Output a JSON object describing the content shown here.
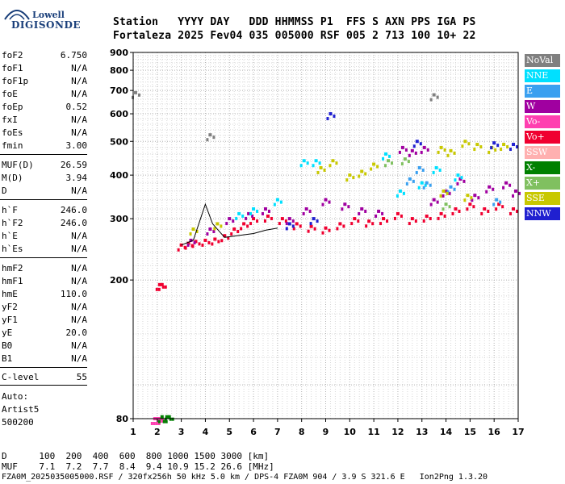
{
  "logo": {
    "line1": "Lowell",
    "line2": "DIGISONDE"
  },
  "header": {
    "row1": "Station   YYYY DAY   DDD HHMMSS P1  FFS S AXN PPS IGA PS",
    "row2": "Fortaleza 2025 Fev04 035 005000 RSF 005 2 713 100 10+ 22"
  },
  "params": [
    {
      "name": "foF2",
      "value": "6.750"
    },
    {
      "name": "foF1",
      "value": "N/A"
    },
    {
      "name": "foF1p",
      "value": "N/A"
    },
    {
      "name": "foE",
      "value": "N/A"
    },
    {
      "name": "foEp",
      "value": "0.52"
    },
    {
      "name": "fxI",
      "value": "N/A"
    },
    {
      "name": "foEs",
      "value": "N/A"
    },
    {
      "name": "fmin",
      "value": "3.00"
    },
    {
      "name": "MUF(D)",
      "value": "26.59"
    },
    {
      "name": "M(D)",
      "value": "3.94"
    },
    {
      "name": "D",
      "value": "N/A"
    },
    {
      "name": "h`F",
      "value": "246.0"
    },
    {
      "name": "h`F2",
      "value": "246.0"
    },
    {
      "name": "h`E",
      "value": "N/A"
    },
    {
      "name": "h`Es",
      "value": "N/A"
    },
    {
      "name": "hmF2",
      "value": "N/A"
    },
    {
      "name": "hmF1",
      "value": "N/A"
    },
    {
      "name": "hmE",
      "value": "110.0"
    },
    {
      "name": "yF2",
      "value": "N/A"
    },
    {
      "name": "yF1",
      "value": "N/A"
    },
    {
      "name": "yE",
      "value": "20.0"
    },
    {
      "name": "B0",
      "value": "N/A"
    },
    {
      "name": "B1",
      "value": "N/A"
    },
    {
      "name": "C-level",
      "value": "55"
    }
  ],
  "auto": {
    "line1": "Auto:",
    "line2": "Artist5",
    "line3": "500200"
  },
  "footer": {
    "d_row": "D      100  200  400  600  800 1000 1500 3000 [km]",
    "muf_row": "MUF    7.1  7.2  7.7  8.4  9.4 10.9 15.2 26.6 [MHz]",
    "file_row": "FZA0M_2025035005000.RSF / 320fx256h 50 kHz 5.0 km / DPS-4 FZA0M 904 / 3.9 S 321.6 E   Ion2Png 1.3.20"
  },
  "legend": [
    {
      "label": "NoVal",
      "color": "#808080"
    },
    {
      "label": "NNE",
      "color": "#00e0ff"
    },
    {
      "label": "E",
      "color": "#3aa0f0"
    },
    {
      "label": "W",
      "color": "#a000a0"
    },
    {
      "label": "Vo-",
      "color": "#ff3fb0"
    },
    {
      "label": "Vo+",
      "color": "#f00030"
    },
    {
      "label": "SSW",
      "color": "#ffb0b0"
    },
    {
      "label": "X-",
      "color": "#008000"
    },
    {
      "label": "X+",
      "color": "#80c060"
    },
    {
      "label": "SSE",
      "color": "#c8c800"
    },
    {
      "label": "NNW",
      "color": "#2020d0"
    }
  ],
  "chart_data": {
    "type": "scatter",
    "title": "",
    "xlabel": "",
    "ylabel": "",
    "xlim": [
      1,
      17
    ],
    "ylim": [
      80,
      900
    ],
    "y_scale": "log",
    "x_ticks": [
      1,
      2,
      3,
      4,
      5,
      6,
      7,
      8,
      9,
      10,
      11,
      12,
      13,
      14,
      15,
      16,
      17
    ],
    "y_ticks": [
      80,
      200,
      300,
      400,
      500,
      600,
      700,
      800,
      900
    ],
    "grid": true,
    "legend_position": "right",
    "series": [
      {
        "name": "Vo-",
        "points": [
          [
            1.9,
            80
          ],
          [
            2.0,
            80
          ],
          [
            2.1,
            80
          ],
          [
            2.2,
            80
          ]
        ]
      },
      {
        "name": "X-",
        "points": [
          [
            2.2,
            81
          ],
          [
            2.4,
            81
          ],
          [
            2.5,
            81
          ]
        ]
      },
      {
        "name": "Vo+",
        "points": [
          [
            2.1,
            194
          ],
          [
            2.2,
            194
          ],
          [
            3.0,
            252
          ],
          [
            3.3,
            255
          ],
          [
            3.6,
            258
          ],
          [
            4.0,
            260
          ],
          [
            4.4,
            262
          ],
          [
            4.8,
            268
          ],
          [
            5.2,
            280
          ],
          [
            5.6,
            290
          ],
          [
            6.0,
            300
          ],
          [
            6.6,
            305
          ],
          [
            7.2,
            300
          ],
          [
            7.8,
            290
          ],
          [
            8.4,
            285
          ],
          [
            9.0,
            282
          ],
          [
            9.6,
            290
          ],
          [
            10.2,
            300
          ],
          [
            10.8,
            295
          ],
          [
            11.4,
            300
          ],
          [
            12.0,
            310
          ],
          [
            12.6,
            300
          ],
          [
            13.2,
            305
          ],
          [
            13.8,
            310
          ],
          [
            14.4,
            320
          ],
          [
            15.0,
            330
          ],
          [
            15.6,
            320
          ],
          [
            16.2,
            330
          ],
          [
            16.8,
            320
          ]
        ]
      },
      {
        "name": "W",
        "points": [
          [
            3.4,
            260
          ],
          [
            4.2,
            280
          ],
          [
            5.0,
            300
          ],
          [
            5.8,
            310
          ],
          [
            6.5,
            320
          ],
          [
            7.5,
            300
          ],
          [
            8.2,
            320
          ],
          [
            9.0,
            340
          ],
          [
            9.8,
            330
          ],
          [
            10.5,
            320
          ],
          [
            11.2,
            315
          ],
          [
            12.2,
            480
          ],
          [
            12.6,
            470
          ],
          [
            13.1,
            480
          ],
          [
            13.5,
            340
          ],
          [
            14.0,
            360
          ],
          [
            14.6,
            390
          ],
          [
            15.2,
            350
          ],
          [
            15.8,
            370
          ],
          [
            16.5,
            380
          ],
          [
            16.9,
            360
          ]
        ]
      },
      {
        "name": "NNE",
        "points": [
          [
            5.4,
            310
          ],
          [
            6.0,
            320
          ],
          [
            7.0,
            340
          ],
          [
            8.1,
            440
          ],
          [
            8.6,
            440
          ],
          [
            11.5,
            460
          ],
          [
            12.1,
            360
          ],
          [
            13.0,
            380
          ],
          [
            13.6,
            420
          ],
          [
            14.5,
            400
          ]
        ]
      },
      {
        "name": "E",
        "points": [
          [
            12.5,
            390
          ],
          [
            12.9,
            420
          ],
          [
            13.2,
            380
          ],
          [
            14.2,
            370
          ],
          [
            16.1,
            340
          ]
        ]
      },
      {
        "name": "SSE",
        "points": [
          [
            3.5,
            280
          ],
          [
            4.5,
            290
          ],
          [
            8.8,
            420
          ],
          [
            9.3,
            440
          ],
          [
            10.0,
            400
          ],
          [
            10.5,
            410
          ],
          [
            11.0,
            430
          ],
          [
            13.8,
            480
          ],
          [
            14.2,
            470
          ],
          [
            14.8,
            500
          ],
          [
            15.3,
            490
          ],
          [
            15.9,
            480
          ],
          [
            16.4,
            490
          ],
          [
            13.9,
            360
          ],
          [
            14.9,
            350
          ]
        ]
      },
      {
        "name": "X+",
        "points": [
          [
            11.6,
            440
          ],
          [
            12.3,
            445
          ],
          [
            14.0,
            330
          ]
        ]
      },
      {
        "name": "NNW",
        "points": [
          [
            7.5,
            290
          ],
          [
            8.5,
            300
          ],
          [
            9.2,
            600
          ],
          [
            12.8,
            500
          ],
          [
            16.0,
            495
          ],
          [
            16.8,
            490
          ]
        ]
      },
      {
        "name": "NoVal",
        "points": [
          [
            13.5,
            680
          ],
          [
            4.2,
            522
          ],
          [
            1.1,
            690
          ]
        ]
      }
    ],
    "trace": {
      "name": "h`F",
      "points": [
        [
          3.0,
          252
        ],
        [
          3.5,
          260
        ],
        [
          4.0,
          330
        ],
        [
          4.3,
          290
        ],
        [
          4.8,
          265
        ],
        [
          5.3,
          268
        ],
        [
          6.0,
          272
        ],
        [
          6.5,
          278
        ],
        [
          7.0,
          282
        ]
      ]
    }
  }
}
